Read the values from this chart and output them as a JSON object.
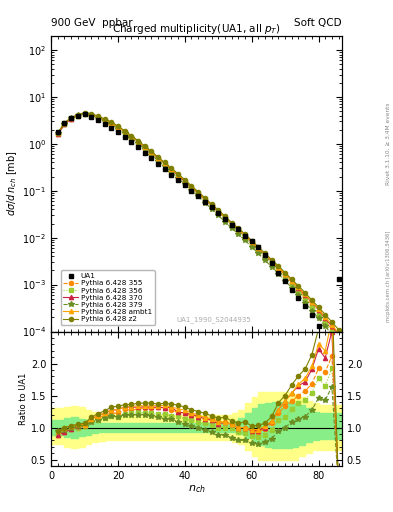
{
  "title_top_left": "900 GeV  ppbar",
  "title_top_right": "Soft QCD",
  "plot_title": "Charged multiplicity(UA1, all p_{T})",
  "xlabel": "n_{ch}",
  "ylabel_main": "dσ/d n_{ch} [mb]",
  "ylabel_ratio": "Ratio to UA1",
  "right_label": "Rivet 3.1.10, ≥ 3.4M events",
  "right_label2": "mcplots.cern.ch [arXiv:1306.3436]",
  "dataset_label": "UA1_1990_S2044935",
  "xlim": [
    0,
    87
  ],
  "ylim_main_lo": 0.0001,
  "ylim_main_hi": 200,
  "ylim_ratio_lo": 0.4,
  "ylim_ratio_hi": 2.5,
  "ua1_nch": [
    2,
    4,
    6,
    8,
    10,
    12,
    14,
    16,
    18,
    20,
    22,
    24,
    26,
    28,
    30,
    32,
    34,
    36,
    38,
    40,
    42,
    44,
    46,
    48,
    50,
    52,
    54,
    56,
    58,
    60,
    62,
    64,
    66,
    68,
    70,
    72,
    74,
    76,
    78,
    80,
    84,
    86
  ],
  "ua1_y": [
    1.8,
    2.8,
    3.5,
    4.0,
    4.3,
    3.8,
    3.2,
    2.7,
    2.2,
    1.8,
    1.4,
    1.1,
    0.85,
    0.65,
    0.5,
    0.38,
    0.29,
    0.22,
    0.17,
    0.13,
    0.1,
    0.076,
    0.058,
    0.044,
    0.034,
    0.025,
    0.019,
    0.015,
    0.011,
    0.0085,
    0.0062,
    0.0043,
    0.0029,
    0.0018,
    0.0012,
    0.00078,
    0.00052,
    0.00035,
    0.00022,
    0.00013,
    5.2e-05,
    0.0013
  ],
  "py355_nch": [
    2,
    4,
    6,
    8,
    10,
    12,
    14,
    16,
    18,
    20,
    22,
    24,
    26,
    28,
    30,
    32,
    34,
    36,
    38,
    40,
    42,
    44,
    46,
    48,
    50,
    52,
    54,
    56,
    58,
    60,
    62,
    64,
    66,
    68,
    70,
    72,
    74,
    76,
    78,
    80,
    82,
    84,
    86
  ],
  "py355_y": [
    1.6,
    2.6,
    3.4,
    4.0,
    4.4,
    4.2,
    3.7,
    3.2,
    2.7,
    2.2,
    1.8,
    1.4,
    1.1,
    0.85,
    0.65,
    0.5,
    0.38,
    0.28,
    0.21,
    0.16,
    0.12,
    0.09,
    0.067,
    0.05,
    0.037,
    0.027,
    0.02,
    0.015,
    0.011,
    0.008,
    0.0058,
    0.0042,
    0.0031,
    0.0022,
    0.0016,
    0.0011,
    0.00078,
    0.00055,
    0.00037,
    0.00025,
    0.00017,
    0.00011,
    7.5e-05
  ],
  "py356_nch": [
    2,
    4,
    6,
    8,
    10,
    12,
    14,
    16,
    18,
    20,
    22,
    24,
    26,
    28,
    30,
    32,
    34,
    36,
    38,
    40,
    42,
    44,
    46,
    48,
    50,
    52,
    54,
    56,
    58,
    60,
    62,
    64,
    66,
    68,
    70,
    72,
    74,
    76,
    78,
    80,
    82,
    84,
    86
  ],
  "py356_y": [
    1.6,
    2.6,
    3.4,
    4.0,
    4.4,
    4.2,
    3.6,
    3.1,
    2.6,
    2.1,
    1.7,
    1.35,
    1.05,
    0.8,
    0.61,
    0.46,
    0.35,
    0.26,
    0.2,
    0.148,
    0.111,
    0.083,
    0.062,
    0.046,
    0.034,
    0.025,
    0.019,
    0.014,
    0.01,
    0.0074,
    0.0053,
    0.0038,
    0.0028,
    0.002,
    0.0014,
    0.001,
    0.00072,
    0.0005,
    0.00034,
    0.00023,
    0.00015,
    0.0001,
    6.8e-05
  ],
  "py370_nch": [
    2,
    4,
    6,
    8,
    10,
    12,
    14,
    16,
    18,
    20,
    22,
    24,
    26,
    28,
    30,
    32,
    34,
    36,
    38,
    40,
    42,
    44,
    46,
    48,
    50,
    52,
    54,
    56,
    58,
    60,
    62,
    64,
    66,
    68,
    70,
    72,
    74,
    76,
    78,
    80,
    82,
    84,
    86
  ],
  "py370_y": [
    1.6,
    2.6,
    3.4,
    4.1,
    4.5,
    4.3,
    3.8,
    3.3,
    2.8,
    2.3,
    1.85,
    1.45,
    1.12,
    0.86,
    0.66,
    0.5,
    0.38,
    0.29,
    0.21,
    0.16,
    0.12,
    0.089,
    0.066,
    0.049,
    0.036,
    0.027,
    0.02,
    0.015,
    0.011,
    0.0081,
    0.0059,
    0.0043,
    0.0032,
    0.0023,
    0.0017,
    0.0012,
    0.00086,
    0.0006,
    0.00042,
    0.00029,
    0.00019,
    0.00013,
    8.5e-05
  ],
  "py379_nch": [
    2,
    4,
    6,
    8,
    10,
    12,
    14,
    16,
    18,
    20,
    22,
    24,
    26,
    28,
    30,
    32,
    34,
    36,
    38,
    40,
    42,
    44,
    46,
    48,
    50,
    52,
    54,
    56,
    58,
    60,
    62,
    64,
    66,
    68,
    70,
    72,
    74,
    76,
    78,
    80,
    82,
    84,
    86
  ],
  "py379_y": [
    1.7,
    2.7,
    3.5,
    4.1,
    4.4,
    4.1,
    3.6,
    3.1,
    2.6,
    2.1,
    1.68,
    1.32,
    1.02,
    0.78,
    0.59,
    0.44,
    0.33,
    0.25,
    0.185,
    0.138,
    0.102,
    0.076,
    0.056,
    0.041,
    0.03,
    0.022,
    0.016,
    0.012,
    0.0088,
    0.0064,
    0.0046,
    0.0033,
    0.0024,
    0.0017,
    0.0012,
    0.00085,
    0.00059,
    0.00041,
    0.00028,
    0.00019,
    0.00013,
    8.5e-05,
    5.7e-05
  ],
  "pyambt1_nch": [
    2,
    4,
    6,
    8,
    10,
    12,
    14,
    16,
    18,
    20,
    22,
    24,
    26,
    28,
    30,
    32,
    34,
    36,
    38,
    40,
    42,
    44,
    46,
    48,
    50,
    52,
    54,
    56,
    58,
    60,
    62,
    64,
    66,
    68,
    70,
    72,
    74,
    76,
    78,
    80,
    82,
    84,
    86
  ],
  "pyambt1_y": [
    1.7,
    2.8,
    3.6,
    4.2,
    4.5,
    4.3,
    3.8,
    3.3,
    2.8,
    2.3,
    1.85,
    1.46,
    1.14,
    0.87,
    0.67,
    0.51,
    0.39,
    0.29,
    0.22,
    0.165,
    0.123,
    0.091,
    0.067,
    0.05,
    0.037,
    0.027,
    0.02,
    0.015,
    0.011,
    0.0082,
    0.006,
    0.0044,
    0.0032,
    0.0023,
    0.0017,
    0.0012,
    0.00087,
    0.00062,
    0.00043,
    0.0003,
    0.0002,
    0.00014,
    9.2e-05
  ],
  "pyz2_nch": [
    2,
    4,
    6,
    8,
    10,
    12,
    14,
    16,
    18,
    20,
    22,
    24,
    26,
    28,
    30,
    32,
    34,
    36,
    38,
    40,
    42,
    44,
    46,
    48,
    50,
    52,
    54,
    56,
    58,
    60,
    62,
    64,
    66,
    68,
    70,
    72,
    74,
    76,
    78,
    80,
    82,
    84,
    86
  ],
  "pyz2_y": [
    1.7,
    2.8,
    3.6,
    4.2,
    4.6,
    4.4,
    3.9,
    3.4,
    2.9,
    2.4,
    1.9,
    1.5,
    1.17,
    0.9,
    0.69,
    0.52,
    0.4,
    0.3,
    0.23,
    0.171,
    0.128,
    0.095,
    0.071,
    0.052,
    0.039,
    0.029,
    0.021,
    0.016,
    0.012,
    0.0087,
    0.0064,
    0.0046,
    0.0034,
    0.0025,
    0.0018,
    0.0013,
    0.00094,
    0.00067,
    0.00047,
    0.00033,
    0.00023,
    0.00016,
    0.00011
  ],
  "col_ua1": "#000000",
  "col_py355": "#ff8c00",
  "col_py356": "#9acd32",
  "col_py370": "#cc2244",
  "col_py379": "#6b8e23",
  "col_pyambt1": "#ffa500",
  "col_pyz2": "#808000",
  "ratio_yellow_lo": [
    0.75,
    0.75,
    0.7,
    0.68,
    0.7,
    0.74,
    0.77,
    0.79,
    0.8,
    0.8,
    0.8,
    0.8,
    0.8,
    0.8,
    0.8,
    0.8,
    0.8,
    0.8,
    0.8,
    0.8,
    0.8,
    0.8,
    0.8,
    0.8,
    0.8,
    0.8,
    0.8,
    0.78,
    0.74,
    0.65,
    0.56,
    0.5,
    0.5,
    0.5,
    0.5,
    0.5,
    0.5,
    0.55,
    0.6,
    0.65,
    0.65,
    0.65,
    0.65,
    0.65
  ],
  "ratio_yellow_hi": [
    1.3,
    1.3,
    1.32,
    1.34,
    1.32,
    1.28,
    1.25,
    1.22,
    1.2,
    1.2,
    1.2,
    1.2,
    1.2,
    1.2,
    1.2,
    1.2,
    1.2,
    1.2,
    1.2,
    1.2,
    1.2,
    1.2,
    1.2,
    1.2,
    1.2,
    1.2,
    1.2,
    1.22,
    1.28,
    1.38,
    1.48,
    1.55,
    1.55,
    1.55,
    1.55,
    1.55,
    1.52,
    1.48,
    1.42,
    1.38,
    1.35,
    1.35,
    1.35,
    1.35
  ],
  "ratio_green_lo": [
    0.88,
    0.88,
    0.85,
    0.84,
    0.86,
    0.89,
    0.92,
    0.93,
    0.93,
    0.93,
    0.93,
    0.93,
    0.93,
    0.93,
    0.93,
    0.93,
    0.93,
    0.93,
    0.93,
    0.93,
    0.93,
    0.93,
    0.93,
    0.93,
    0.93,
    0.93,
    0.93,
    0.93,
    0.9,
    0.84,
    0.77,
    0.72,
    0.7,
    0.68,
    0.68,
    0.68,
    0.7,
    0.73,
    0.77,
    0.8,
    0.82,
    0.82,
    0.82,
    0.82
  ],
  "ratio_green_hi": [
    1.12,
    1.12,
    1.15,
    1.16,
    1.14,
    1.11,
    1.09,
    1.07,
    1.07,
    1.07,
    1.07,
    1.07,
    1.07,
    1.07,
    1.07,
    1.07,
    1.07,
    1.07,
    1.07,
    1.07,
    1.07,
    1.07,
    1.07,
    1.07,
    1.07,
    1.07,
    1.07,
    1.1,
    1.15,
    1.22,
    1.3,
    1.36,
    1.38,
    1.4,
    1.4,
    1.4,
    1.38,
    1.35,
    1.3,
    1.25,
    1.22,
    1.22,
    1.22,
    1.22
  ],
  "band_x": [
    0,
    2,
    4,
    6,
    8,
    10,
    12,
    14,
    16,
    18,
    20,
    22,
    24,
    26,
    28,
    30,
    32,
    34,
    36,
    38,
    40,
    42,
    44,
    46,
    48,
    50,
    52,
    54,
    56,
    58,
    60,
    62,
    64,
    66,
    68,
    70,
    72,
    74,
    76,
    78,
    80,
    82,
    84,
    86
  ]
}
